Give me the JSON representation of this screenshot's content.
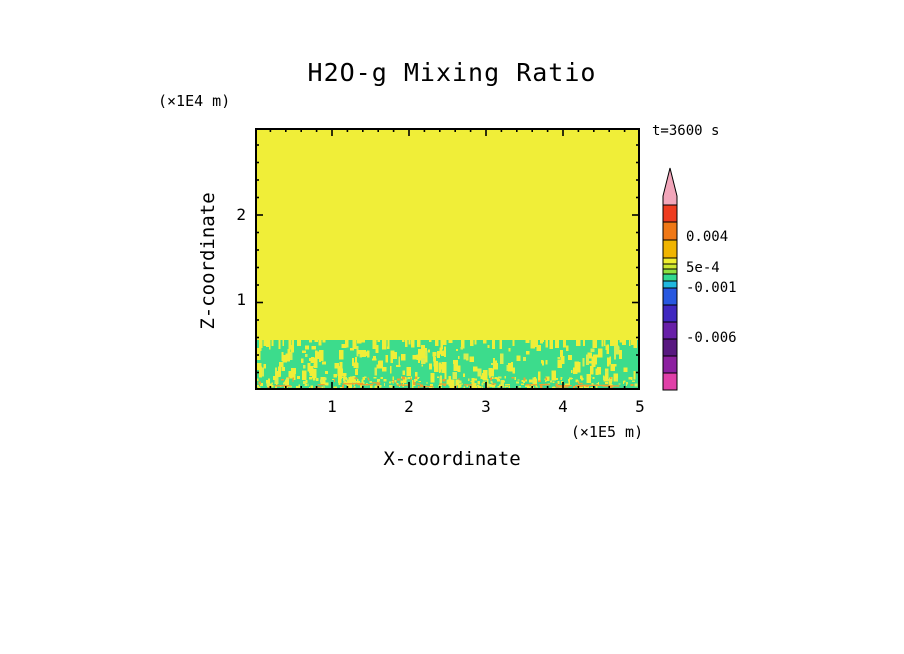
{
  "title": "H2O-g Mixing Ratio",
  "time_label": "t=3600 s",
  "axes": {
    "x_label": "X-coordinate",
    "x_unit": "(×1E5 m)",
    "y_label": "Z-coordinate",
    "y_unit": "(×1E4 m)",
    "x_ticks": [
      "1",
      "2",
      "3",
      "4",
      "5"
    ],
    "y_ticks": [
      "1",
      "2"
    ]
  },
  "colorbar": {
    "labels": [
      "0.004",
      "5e-4",
      "-0.001",
      "-0.006"
    ],
    "pennant_color": "#f2a6ba",
    "segments": [
      {
        "color": "#ee3c20",
        "h": 17
      },
      {
        "color": "#f07816",
        "h": 18
      },
      {
        "color": "#f0b400",
        "h": 18
      },
      {
        "color": "#f0ee30",
        "h": 6
      },
      {
        "color": "#cce830",
        "h": 5
      },
      {
        "color": "#8ce040",
        "h": 5
      },
      {
        "color": "#30d890",
        "h": 7
      },
      {
        "color": "#20b8e0",
        "h": 7
      },
      {
        "color": "#2858e0",
        "h": 17
      },
      {
        "color": "#4028c0",
        "h": 17
      },
      {
        "color": "#6820a8",
        "h": 17
      },
      {
        "color": "#581880",
        "h": 17
      },
      {
        "color": "#8c20a0",
        "h": 17
      },
      {
        "color": "#e040a8",
        "h": 17
      }
    ]
  },
  "chart_data": {
    "type": "heatmap",
    "title": "H2O-g Mixing Ratio",
    "xlabel": "X-coordinate",
    "ylabel": "Z-coordinate",
    "x_unit": "×1E5 m",
    "y_unit": "×1E4 m",
    "x_range": [
      0,
      5
    ],
    "y_range": [
      0,
      3
    ],
    "x_tick_values": [
      1,
      2,
      3,
      4,
      5
    ],
    "y_tick_values": [
      1,
      2
    ],
    "time_annotation": "t=3600 s",
    "colorbar_tick_labels": [
      "0.004",
      "5e-4",
      "-0.001",
      "-0.006"
    ],
    "field_description": {
      "upper_region": {
        "z_from": 0.6,
        "z_to": 3.0,
        "approx_value": "5e-4 (uniform)",
        "color": "#f0ee38"
      },
      "boundary_layer": {
        "z_from": 0.0,
        "z_to": 0.6,
        "approx_value": "between -0.001 and 5e-4, speckled turbulent mixing",
        "color": "#3cdc8c",
        "speckle_colors": [
          "#f0ee38",
          "#f0a030",
          "#d8ee50"
        ]
      }
    },
    "legend_position": "right",
    "grid": false
  }
}
